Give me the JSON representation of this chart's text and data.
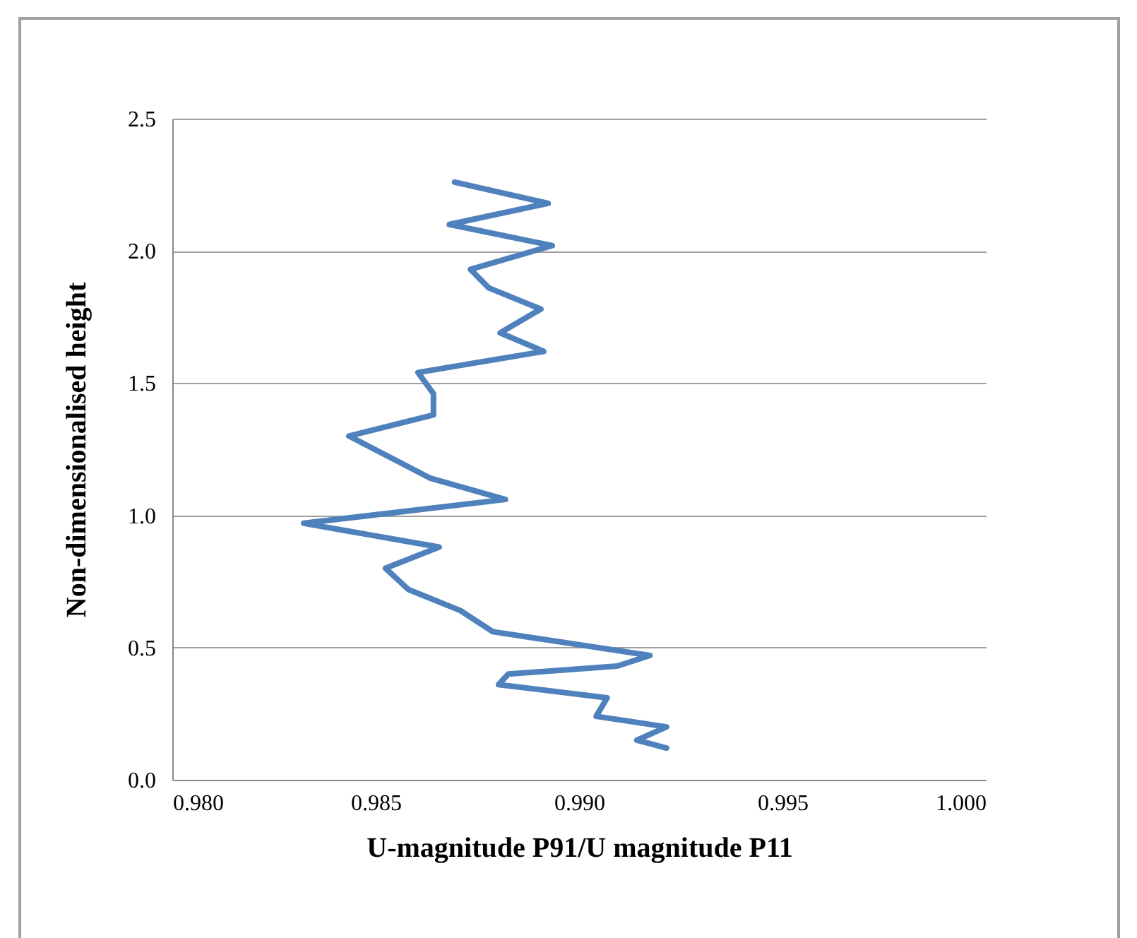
{
  "chart_data": {
    "type": "line",
    "xlabel": "U-magnitude P91/U magnitude P11",
    "ylabel": "Non-dimensionalised  height",
    "x": [
      0.99215,
      0.99142,
      0.99215,
      0.99042,
      0.99069,
      0.98802,
      0.98826,
      0.99094,
      0.99174,
      0.98788,
      0.98708,
      0.9858,
      0.98524,
      0.98656,
      0.98323,
      0.98819,
      0.98635,
      0.98434,
      0.98642,
      0.98642,
      0.98604,
      0.98913,
      0.98806,
      0.98906,
      0.98778,
      0.98733,
      0.98934,
      0.98681,
      0.98924,
      0.98694
    ],
    "series": [
      {
        "color": "#4f81bd",
        "values": [
          0.12,
          0.15,
          0.2,
          0.24,
          0.31,
          0.36,
          0.4,
          0.43,
          0.47,
          0.56,
          0.64,
          0.72,
          0.8,
          0.88,
          0.97,
          1.06,
          1.14,
          1.3,
          1.38,
          1.46,
          1.54,
          1.62,
          1.69,
          1.78,
          1.86,
          1.93,
          2.02,
          2.1,
          2.18,
          2.26
        ]
      }
    ],
    "xlim": [
      0.98,
      1.0
    ],
    "xticks": [
      {
        "value": 0.98,
        "label": "0.980"
      },
      {
        "value": 0.985,
        "label": "0.985"
      },
      {
        "value": 0.99,
        "label": "0.990"
      },
      {
        "value": 0.995,
        "label": "0.995"
      },
      {
        "value": 1.0,
        "label": "1.000"
      }
    ],
    "ylim": [
      0,
      2.5
    ],
    "yticks": [
      {
        "value": 0,
        "label": "0.0"
      },
      {
        "value": 0.5,
        "label": "0.5"
      },
      {
        "value": 1.0,
        "label": "1.0"
      },
      {
        "value": 1.5,
        "label": "1.5"
      },
      {
        "value": 2.0,
        "label": "2.0"
      },
      {
        "value": 2.5,
        "label": "2.5"
      }
    ],
    "grid": "y",
    "marker": "none",
    "line_style": "solid"
  }
}
